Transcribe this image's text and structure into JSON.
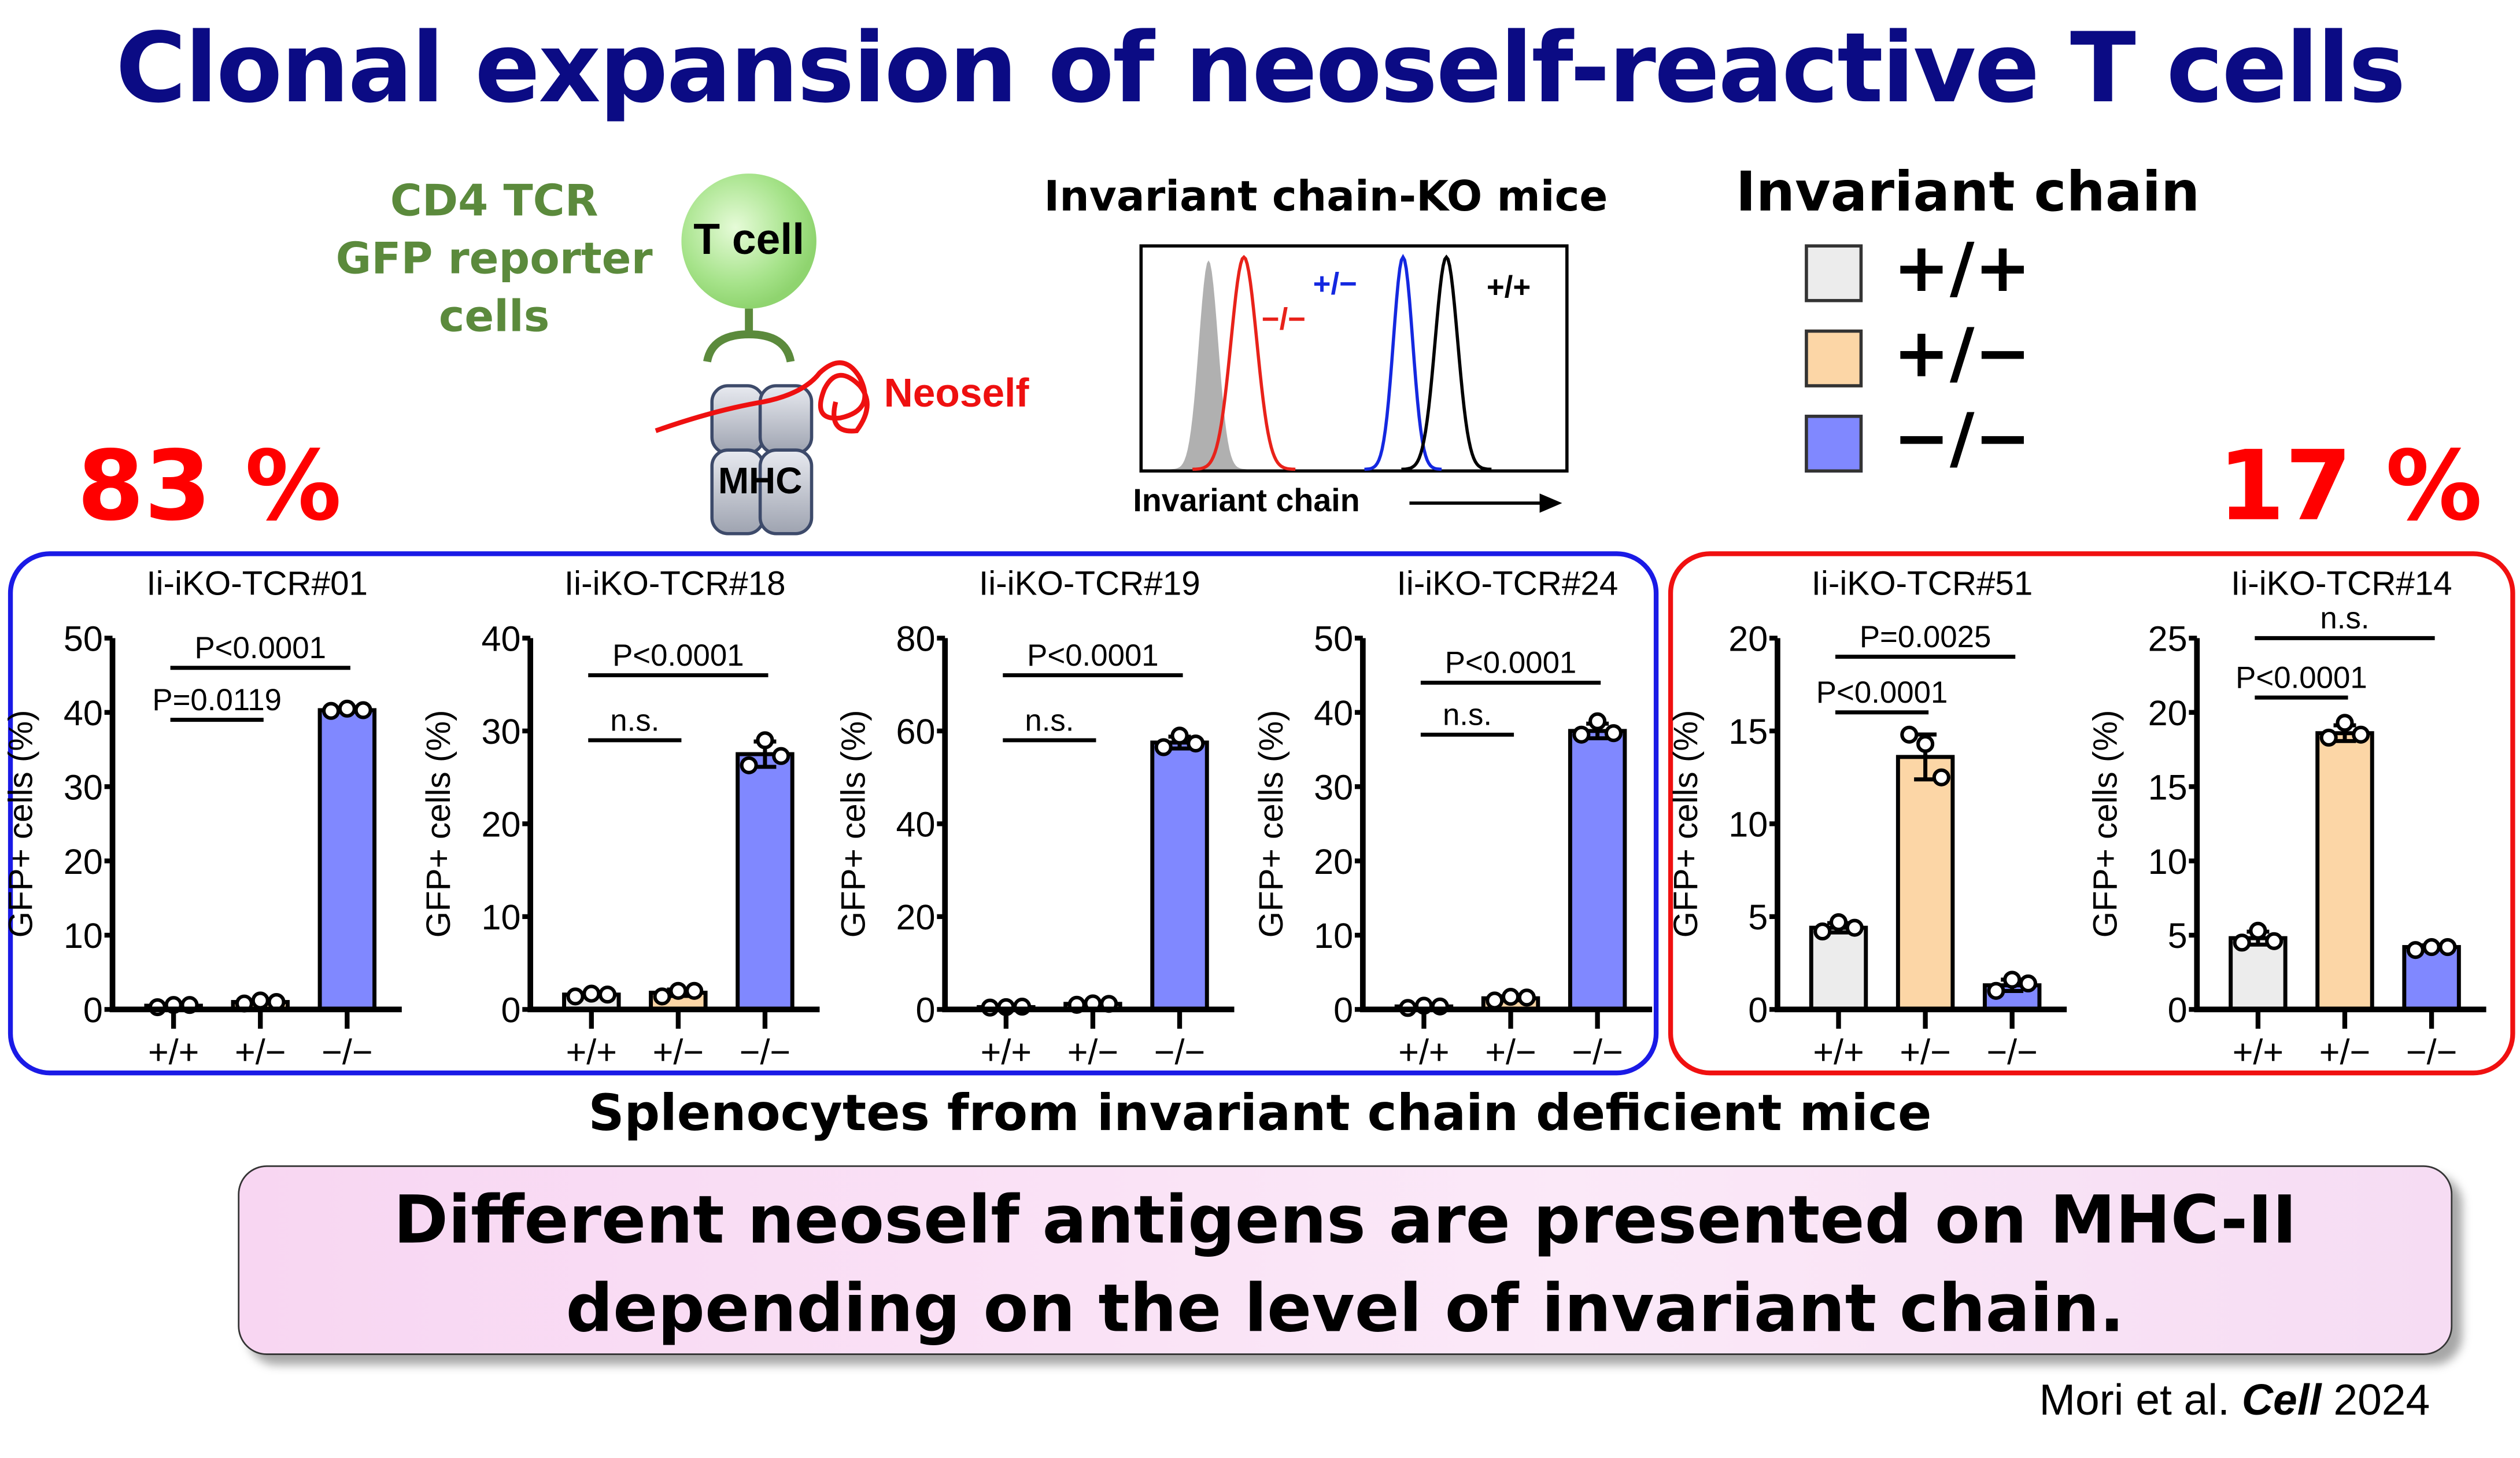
{
  "title": "Clonal expansion of neoself-reactive T cells",
  "diagram": {
    "reporter_lines": [
      "CD4 TCR",
      "GFP reporter",
      "cells"
    ],
    "t_cell_label": "T cell",
    "mhc_label": "MHC",
    "neoself_label": "Neoself"
  },
  "histogram": {
    "title": "Invariant chain-KO mice",
    "xlabel": "Invariant chain",
    "peaks": [
      {
        "label": "",
        "color": "#b0b0b0"
      },
      {
        "label": "−/−",
        "color": "#e8221a"
      },
      {
        "label": "+/−",
        "color": "#1428e0"
      },
      {
        "label": "+/+",
        "color": "#000000"
      }
    ]
  },
  "legend": {
    "title": "Invariant chain",
    "items": [
      {
        "label": "+/+",
        "color": "#ececec"
      },
      {
        "label": "+/−",
        "color": "#fcd6a6"
      },
      {
        "label": "−/−",
        "color": "#8088ff"
      }
    ]
  },
  "percent_left": "83 %",
  "percent_right": "17 %",
  "chart_data": [
    {
      "type": "bar",
      "title": "Ii-iKO-TCR#01",
      "ylabel": "GFP+ cells (%)",
      "categories": [
        "+/+",
        "+/−",
        "−/−"
      ],
      "ylim": [
        0,
        50
      ],
      "yticks": [
        0,
        10,
        20,
        30,
        40,
        50
      ],
      "values": [
        0.5,
        1.0,
        40.3
      ],
      "points": [
        [
          0.3,
          0.6,
          0.6
        ],
        [
          0.8,
          1.2,
          1.0
        ],
        [
          40.2,
          40.5,
          40.3
        ]
      ],
      "significance": [
        {
          "text": "P<0.0001",
          "from": 0,
          "to": 2,
          "y": 46
        },
        {
          "text": "P=0.0119",
          "from": 0,
          "to": 1,
          "y": 39
        }
      ]
    },
    {
      "type": "bar",
      "title": "Ii-iKO-TCR#18",
      "ylabel": "GFP+ cells (%)",
      "categories": [
        "+/+",
        "+/−",
        "−/−"
      ],
      "ylim": [
        0,
        40
      ],
      "yticks": [
        0,
        10,
        20,
        30,
        40
      ],
      "values": [
        1.6,
        1.8,
        27.5
      ],
      "points": [
        [
          1.4,
          1.7,
          1.6
        ],
        [
          1.4,
          2.0,
          2.0
        ],
        [
          26.3,
          29.0,
          27.3
        ]
      ],
      "significance": [
        {
          "text": "P<0.0001",
          "from": 0,
          "to": 2,
          "y": 36
        },
        {
          "text": "n.s.",
          "from": 0,
          "to": 1,
          "y": 29
        }
      ]
    },
    {
      "type": "bar",
      "title": "Ii-iKO-TCR#19",
      "ylabel": "GFP+ cells (%)",
      "categories": [
        "+/+",
        "+/−",
        "−/−"
      ],
      "ylim": [
        0,
        80
      ],
      "yticks": [
        0,
        20,
        40,
        60,
        80
      ],
      "values": [
        0.5,
        1.2,
        57.5
      ],
      "points": [
        [
          0.4,
          0.5,
          0.6
        ],
        [
          1.0,
          1.3,
          1.2
        ],
        [
          56.5,
          59.0,
          57.3
        ]
      ],
      "significance": [
        {
          "text": "P<0.0001",
          "from": 0,
          "to": 2,
          "y": 72
        },
        {
          "text": "n.s.",
          "from": 0,
          "to": 1,
          "y": 58
        }
      ]
    },
    {
      "type": "bar",
      "title": "Ii-iKO-TCR#24",
      "ylabel": "GFP+ cells (%)",
      "categories": [
        "+/+",
        "+/−",
        "−/−"
      ],
      "ylim": [
        0,
        50
      ],
      "yticks": [
        0,
        10,
        20,
        30,
        40,
        50
      ],
      "values": [
        0.4,
        1.5,
        37.5
      ],
      "points": [
        [
          0.2,
          0.5,
          0.4
        ],
        [
          1.2,
          1.7,
          1.6
        ],
        [
          37.0,
          38.8,
          37.2
        ]
      ],
      "significance": [
        {
          "text": "P<0.0001",
          "from": 0,
          "to": 2,
          "y": 44
        },
        {
          "text": "n.s.",
          "from": 0,
          "to": 1,
          "y": 37
        }
      ]
    },
    {
      "type": "bar",
      "title": "Ii-iKO-TCR#51",
      "ylabel": "GFP+ cells (%)",
      "categories": [
        "+/+",
        "+/−",
        "−/−"
      ],
      "ylim": [
        0,
        20
      ],
      "yticks": [
        0,
        5,
        10,
        15,
        20
      ],
      "values": [
        4.4,
        13.6,
        1.3
      ],
      "points": [
        [
          4.2,
          4.7,
          4.4
        ],
        [
          14.8,
          14.3,
          12.5
        ],
        [
          1.0,
          1.6,
          1.4
        ]
      ],
      "significance": [
        {
          "text": "P=0.0025",
          "from": 0,
          "to": 2,
          "y": 19
        },
        {
          "text": "P<0.0001",
          "from": 0,
          "to": 1,
          "y": 16
        }
      ]
    },
    {
      "type": "bar",
      "title": "Ii-iKO-TCR#14",
      "ylabel": "GFP+ cells (%)",
      "categories": [
        "+/+",
        "+/−",
        "−/−"
      ],
      "ylim": [
        0,
        25
      ],
      "yticks": [
        0,
        5,
        10,
        15,
        20,
        25
      ],
      "values": [
        4.8,
        18.6,
        4.2
      ],
      "points": [
        [
          4.5,
          5.3,
          4.6
        ],
        [
          18.3,
          19.3,
          18.5
        ],
        [
          4.0,
          4.2,
          4.2
        ]
      ],
      "significance": [
        {
          "text": "n.s.",
          "from": 0,
          "to": 2,
          "y": 25
        },
        {
          "text": "P<0.0001",
          "from": 0,
          "to": 1,
          "y": 21
        }
      ]
    }
  ],
  "splenocytes_caption": "Splenocytes from invariant chain deficient mice",
  "conclusion": [
    "Different neoself antigens are presented on MHC-II",
    "depending on the level of invariant chain."
  ],
  "citation": {
    "authors": "Mori et al. ",
    "journal": "Cell",
    "year": " 2024"
  }
}
